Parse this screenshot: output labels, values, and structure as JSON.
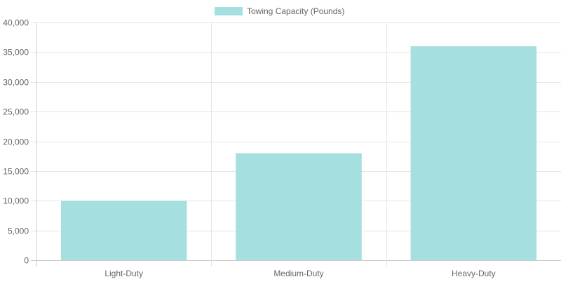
{
  "chart_data": {
    "type": "bar",
    "title": "",
    "xlabel": "",
    "ylabel": "",
    "categories": [
      "Light-Duty",
      "Medium-Duty",
      "Heavy-Duty"
    ],
    "series": [
      {
        "name": "Towing Capacity (Pounds)",
        "values": [
          10000,
          18000,
          36000
        ],
        "color": "#a5dfdf"
      }
    ],
    "ylim": [
      0,
      40000
    ],
    "yticks": [
      0,
      5000,
      10000,
      15000,
      20000,
      25000,
      30000,
      35000,
      40000
    ],
    "ytick_labels": [
      "0",
      "5,000",
      "10,000",
      "15,000",
      "20,000",
      "25,000",
      "30,000",
      "35,000",
      "40,000"
    ],
    "grid": true,
    "legend": "top"
  }
}
